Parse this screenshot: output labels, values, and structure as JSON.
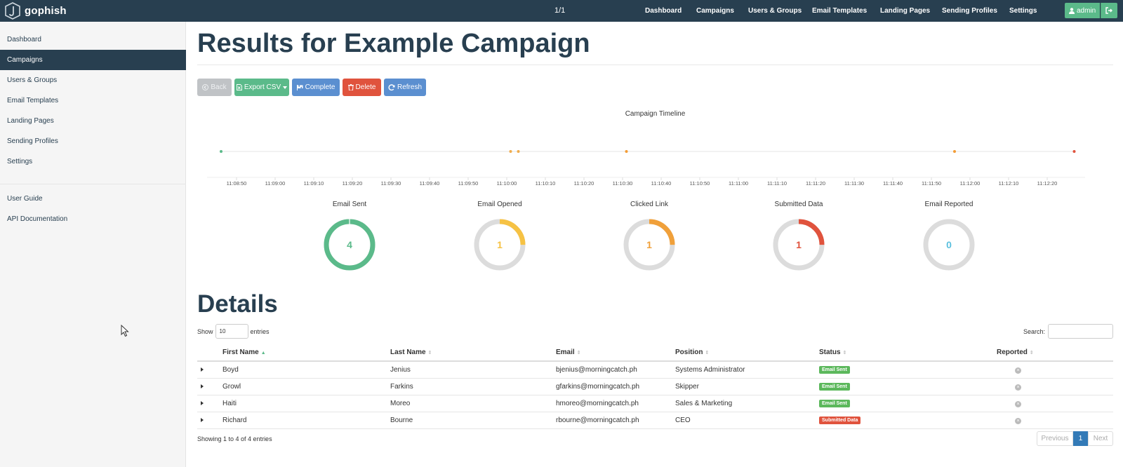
{
  "brand": {
    "name": "gophish",
    "logo_icon": "gophish-shield-icon"
  },
  "page_counter": "1/1",
  "topnav": [
    "Dashboard",
    "Campaigns",
    "Users & Groups",
    "Email Templates",
    "Landing Pages",
    "Sending Profiles",
    "Settings"
  ],
  "user_menu": {
    "label": "admin",
    "logout_icon": "sign-out-icon"
  },
  "sidebar": {
    "items": [
      "Dashboard",
      "Campaigns",
      "Users & Groups",
      "Email Templates",
      "Landing Pages",
      "Sending Profiles",
      "Settings"
    ],
    "active": "Campaigns",
    "extra": [
      "User Guide",
      "API Documentation"
    ]
  },
  "main": {
    "title": "Results for Example Campaign",
    "buttons": {
      "back": "Back",
      "export": "Export CSV",
      "complete": "Complete",
      "delete": "Delete",
      "refresh": "Refresh"
    },
    "timeline": {
      "title": "Campaign Timeline",
      "ticks": [
        "11:08:50",
        "11:09:00",
        "11:09:10",
        "11:09:20",
        "11:09:30",
        "11:09:40",
        "11:09:50",
        "11:10:00",
        "11:10:10",
        "11:10:20",
        "11:10:30",
        "11:10:40",
        "11:10:50",
        "11:11:00",
        "11:11:10",
        "11:11:20",
        "11:11:30",
        "11:11:40",
        "11:11:50",
        "11:12:00",
        "11:12:10",
        "11:12:20"
      ],
      "events": [
        {
          "type": "sent",
          "color": "#5bba8a",
          "t": "11:08:46"
        },
        {
          "type": "opened",
          "color": "#f0ad4e",
          "t": "11:10:01"
        },
        {
          "type": "opened",
          "color": "#f0ad4e",
          "t": "11:10:03"
        },
        {
          "type": "clicked",
          "color": "#f39c35",
          "t": "11:10:31"
        },
        {
          "type": "clicked",
          "color": "#f39c35",
          "t": "11:11:56"
        },
        {
          "type": "submitted",
          "color": "#e0533d",
          "t": "11:12:27"
        }
      ]
    },
    "stats": [
      {
        "title": "Email Sent",
        "value": "4",
        "fraction": 1.0,
        "color": "#5bba8a"
      },
      {
        "title": "Email Opened",
        "value": "1",
        "fraction": 0.25,
        "color": "#f6c244"
      },
      {
        "title": "Clicked Link",
        "value": "1",
        "fraction": 0.25,
        "color": "#f0a03a"
      },
      {
        "title": "Submitted Data",
        "value": "1",
        "fraction": 0.25,
        "color": "#e0533d"
      },
      {
        "title": "Email Reported",
        "value": "0",
        "fraction": 0.0,
        "color": "#5bc0de"
      }
    ],
    "details": {
      "title": "Details",
      "show_label": "Show",
      "show_value": "10",
      "entries_label": "entries",
      "search_label": "Search:",
      "columns": [
        "First Name",
        "Last Name",
        "Email",
        "Position",
        "Status",
        "Reported"
      ],
      "rows": [
        {
          "first": "Boyd",
          "last": "Jenius",
          "email": "bjenius@morningcatch.ph",
          "position": "Systems Administrator",
          "status": "Email Sent",
          "status_type": "sent"
        },
        {
          "first": "Growl",
          "last": "Farkins",
          "email": "gfarkins@morningcatch.ph",
          "position": "Skipper",
          "status": "Email Sent",
          "status_type": "sent"
        },
        {
          "first": "Haiti",
          "last": "Moreo",
          "email": "hmoreo@morningcatch.ph",
          "position": "Sales & Marketing",
          "status": "Email Sent",
          "status_type": "sent"
        },
        {
          "first": "Richard",
          "last": "Bourne",
          "email": "rbourne@morningcatch.ph",
          "position": "CEO",
          "status": "Submitted Data",
          "status_type": "submitted"
        }
      ],
      "showing": "Showing 1 to 4 of 4 entries",
      "pager": {
        "previous": "Previous",
        "page": "1",
        "next": "Next"
      }
    }
  }
}
